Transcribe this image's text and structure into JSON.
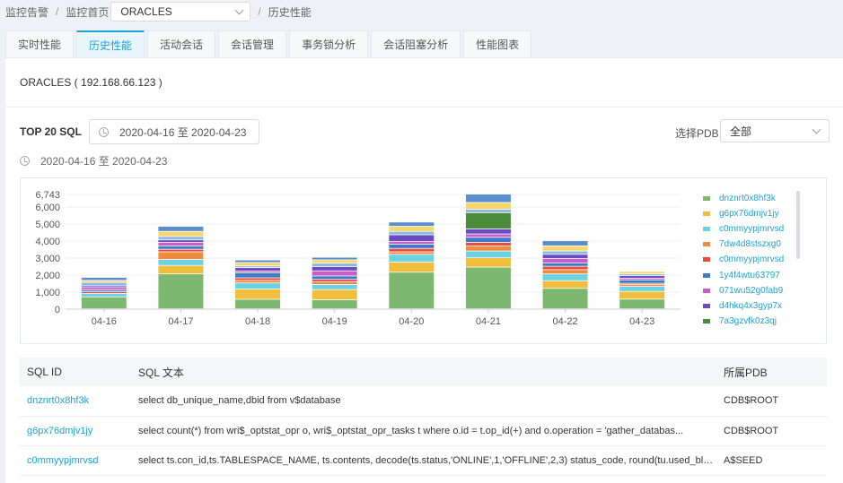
{
  "breadcrumb": {
    "item1": "监控告警",
    "item2": "监控首页",
    "db_select": "ORACLES",
    "item3": "历史性能"
  },
  "tabs": [
    "实时性能",
    "历史性能",
    "活动会话",
    "会话管理",
    "事务锁分析",
    "会话阻塞分析",
    "性能图表"
  ],
  "active_tab": "历史性能",
  "panel_title": "ORACLES ( 192.168.66.123 )",
  "sql_section": {
    "label": "TOP 20 SQL",
    "date_range": "2020-04-16 至 2020-04-23",
    "pdb_label": "选择PDB",
    "pdb_value": "全部"
  },
  "range_caption": "2020-04-16 至 2020-04-23",
  "chart_data": {
    "type": "bar",
    "stacked": true,
    "categories": [
      "04-16",
      "04-17",
      "04-18",
      "04-19",
      "04-20",
      "04-21",
      "04-22",
      "04-23"
    ],
    "y_ticks": [
      "0",
      "1,000",
      "2,000",
      "3,000",
      "4,000",
      "5,000",
      "6,000",
      "6,743"
    ],
    "ylim": [
      0,
      6743
    ],
    "colors": [
      "#7cb870",
      "#f0bd3c",
      "#6ad2e0",
      "#f08a3c",
      "#e84a3c",
      "#3a7ac6",
      "#c85cc8",
      "#6a4cc0",
      "#4a8c3c",
      "#8db8e0",
      "#f5d76e",
      "#5b8ecf"
    ],
    "series": [
      {
        "name": "dnznrt0x8hf3k",
        "values": [
          700,
          2050,
          560,
          530,
          2150,
          2450,
          1200,
          570
        ]
      },
      {
        "name": "g6px76dmjv1jy",
        "values": [
          0,
          500,
          600,
          600,
          600,
          550,
          450,
          450
        ]
      },
      {
        "name": "c0mmyypjmrvsd",
        "values": [
          200,
          350,
          360,
          300,
          450,
          400,
          400,
          300
        ]
      },
      {
        "name": "7dw4d8stszxg0",
        "values": [
          0,
          450,
          150,
          150,
          150,
          300,
          250,
          100
        ]
      },
      {
        "name": "c0mmyypjmrvsd",
        "values": [
          100,
          150,
          150,
          150,
          200,
          200,
          200,
          80
        ]
      },
      {
        "name": "1y4f4wtu63797",
        "values": [
          100,
          200,
          300,
          200,
          250,
          300,
          200,
          200
        ]
      },
      {
        "name": "071wu52g0fab9",
        "values": [
          150,
          200,
          100,
          300,
          150,
          200,
          250,
          100
        ]
      },
      {
        "name": "d4hkq4x3gyp7x",
        "values": [
          100,
          150,
          200,
          250,
          400,
          300,
          250,
          150
        ]
      },
      {
        "name": "7a3gzvfk0z3qj",
        "values": [
          0,
          0,
          0,
          0,
          0,
          950,
          0,
          0
        ]
      },
      {
        "name": "",
        "values": [
          200,
          200,
          100,
          200,
          200,
          200,
          200,
          100
        ]
      },
      {
        "name": "",
        "values": [
          120,
          300,
          200,
          200,
          300,
          400,
          300,
          150
        ]
      },
      {
        "name": "",
        "values": [
          180,
          300,
          150,
          150,
          250,
          493,
          300,
          0
        ]
      }
    ]
  },
  "legend": [
    "dnznrt0x8hf3k",
    "g6px76dmjv1jy",
    "c0mmyypjmrvsd",
    "7dw4d8stszxg0",
    "c0mmyypjmrvsd",
    "1y4f4wtu63797",
    "071wu52g0fab9",
    "d4hkq4x3gyp7x",
    "7a3gzvfk0z3qj"
  ],
  "table": {
    "headers": [
      "SQL ID",
      "SQL 文本",
      "所属PDB"
    ],
    "rows": [
      {
        "id": "dnznrt0x8hf3k",
        "text": "select db_unique_name,dbid from v$database",
        "pdb": "CDB$ROOT"
      },
      {
        "id": "g6px76dmjv1jy",
        "text": "select count(*) from wri$_optstat_opr o, wri$_optstat_opr_tasks t where o.id = t.op_id(+) and o.operation = 'gather_databas...",
        "pdb": "CDB$ROOT"
      },
      {
        "id": "c0mmyypjmrvsd",
        "text": "select ts.con_id,ts.TABLESPACE_NAME, ts.contents, decode(ts.status,'ONLINE',1,'OFFLINE',2,3) status_code, round(tu.used_blo...",
        "pdb": "A$SEED"
      }
    ]
  }
}
